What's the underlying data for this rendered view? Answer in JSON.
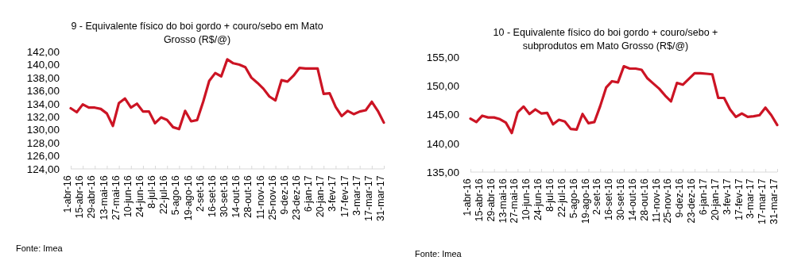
{
  "chart_data": [
    {
      "type": "line",
      "title": "9 - Equivalente físico do boi gordo + couro/sebo em Mato Grosso (R$/@)",
      "categories": [
        "1-abr-16",
        null,
        "15-abr-16",
        null,
        "29-abr-16",
        null,
        "13-mai-16",
        null,
        "27-mai-16",
        null,
        "10-jun-16",
        null,
        "24-jun-16",
        null,
        "8-jul-16",
        null,
        "22-jul-16",
        null,
        "5-ago-16",
        null,
        "19-ago-16",
        null,
        "2-set-16",
        null,
        "16-set-16",
        null,
        "30-set-16",
        null,
        "14-out-16",
        null,
        "28-out-16",
        null,
        "11-nov-16",
        null,
        "25-nov-16",
        null,
        "9-dez-16",
        null,
        "23-dez-16",
        null,
        "6-jan-17",
        null,
        "20-jan-17",
        null,
        "3-fev-17",
        null,
        "17-fev-17",
        null,
        "3-mar-17",
        null,
        "17-mar-17",
        null,
        "31-mar-17"
      ],
      "series": [
        {
          "color": "#cc1424",
          "values": [
            133.3,
            132.7,
            133.9,
            133.4,
            133.4,
            133.2,
            132.5,
            130.6,
            134.1,
            134.8,
            133.4,
            134.0,
            132.8,
            132.8,
            131.0,
            131.9,
            131.5,
            130.4,
            130.1,
            132.9,
            131.3,
            131.5,
            134.3,
            137.5,
            138.7,
            138.2,
            140.8,
            140.2,
            140.0,
            139.6,
            138.0,
            137.2,
            136.3,
            135.1,
            134.5,
            137.6,
            137.4,
            138.3,
            139.5,
            139.4,
            139.4,
            139.4,
            135.5,
            135.6,
            133.5,
            132.1,
            132.9,
            132.4,
            132.8,
            133.0,
            134.3,
            132.9,
            131.1
          ]
        }
      ],
      "ylim": [
        124,
        142
      ],
      "yticks": [
        {
          "value": 124,
          "label": "124,00"
        },
        {
          "value": 126,
          "label": "126,00"
        },
        {
          "value": 128,
          "label": "128,00"
        },
        {
          "value": 130,
          "label": "130,00"
        },
        {
          "value": 132,
          "label": "132,00"
        },
        {
          "value": 134,
          "label": "134,00"
        },
        {
          "value": 136,
          "label": "136,00"
        },
        {
          "value": 138,
          "label": "138,00"
        },
        {
          "value": 140,
          "label": "140,00"
        },
        {
          "value": 142,
          "label": "142,00"
        }
      ],
      "grid": false,
      "marker": "none",
      "line_style": "solid",
      "annotations": [
        "Fonte: Imea"
      ]
    },
    {
      "type": "line",
      "title": "10 - Equivalente físico do boi gordo + couro/sebo + subprodutos em Mato Grosso (R$/@)",
      "categories": [
        "1-abr-16",
        null,
        "15-abr-16",
        null,
        "29-abr-16",
        null,
        "13-mai-16",
        null,
        "27-mai-16",
        null,
        "10-jun-16",
        null,
        "24-jun-16",
        null,
        "8-jul-16",
        null,
        "22-jul-16",
        null,
        "5-ago-16",
        null,
        "19-ago-16",
        null,
        "2-set-16",
        null,
        "16-set-16",
        null,
        "30-set-16",
        null,
        "14-out-16",
        null,
        "28-out-16",
        null,
        "11-nov-16",
        null,
        "25-nov-16",
        null,
        "9-dez-16",
        null,
        "23-dez-16",
        null,
        "6-jan-17",
        null,
        "20-jan-17",
        null,
        "3-fev-17",
        null,
        "17-fev-17",
        null,
        "3-mar-17",
        null,
        "17-mar-17",
        null,
        "31-mar-17"
      ],
      "series": [
        {
          "color": "#cc1424",
          "values": [
            144.3,
            143.7,
            144.8,
            144.5,
            144.5,
            144.2,
            143.6,
            141.8,
            145.4,
            146.4,
            145.1,
            145.9,
            145.2,
            145.3,
            143.3,
            144.1,
            143.8,
            142.5,
            142.4,
            145.1,
            143.5,
            143.7,
            146.5,
            149.7,
            150.8,
            150.6,
            153.4,
            153.0,
            153.0,
            152.8,
            151.3,
            150.4,
            149.5,
            148.3,
            147.3,
            150.5,
            150.2,
            151.2,
            152.2,
            152.2,
            152.1,
            152.0,
            147.9,
            147.9,
            145.9,
            144.6,
            145.2,
            144.6,
            144.7,
            144.9,
            146.2,
            144.9,
            143.2
          ]
        }
      ],
      "ylim": [
        135,
        155
      ],
      "yticks": [
        {
          "value": 135,
          "label": "135,00"
        },
        {
          "value": 140,
          "label": "140,00"
        },
        {
          "value": 145,
          "label": "145,00"
        },
        {
          "value": 150,
          "label": "150,00"
        },
        {
          "value": 155,
          "label": "155,00"
        }
      ],
      "grid": false,
      "marker": "none",
      "line_style": "solid",
      "annotations": [
        "Fonte: Imea"
      ]
    }
  ]
}
